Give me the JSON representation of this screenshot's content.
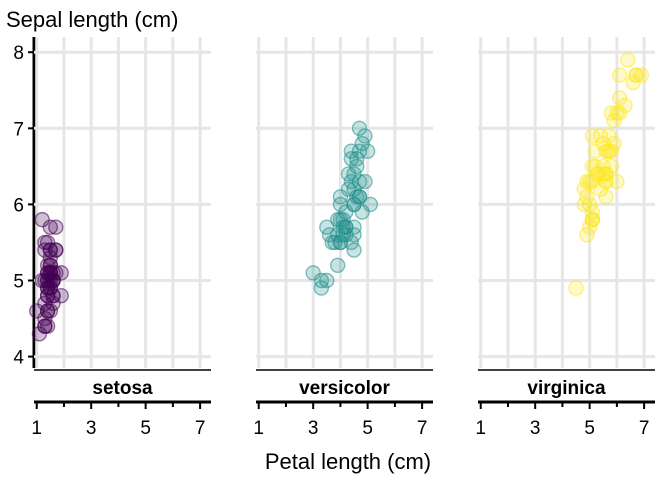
{
  "chart_data": {
    "type": "scatter",
    "ylabel": "Sepal length (cm)",
    "xlabel": "Petal length (cm)",
    "xlim": [
      0.9,
      7.4
    ],
    "ylim": [
      3.85,
      8.2
    ],
    "x_ticks": [
      1,
      3,
      5,
      7
    ],
    "x_minor_ticks": [
      2,
      4,
      6
    ],
    "y_ticks": [
      4,
      5,
      6,
      7,
      8
    ],
    "grid": true,
    "panels": [
      {
        "name": "setosa",
        "color": "#440154",
        "points": [
          [
            1.4,
            5.1
          ],
          [
            1.4,
            4.9
          ],
          [
            1.3,
            4.7
          ],
          [
            1.5,
            4.6
          ],
          [
            1.4,
            5.0
          ],
          [
            1.7,
            5.4
          ],
          [
            1.4,
            4.6
          ],
          [
            1.5,
            5.0
          ],
          [
            1.4,
            4.4
          ],
          [
            1.5,
            4.9
          ],
          [
            1.5,
            5.4
          ],
          [
            1.6,
            4.8
          ],
          [
            1.4,
            4.8
          ],
          [
            1.1,
            4.3
          ],
          [
            1.2,
            5.8
          ],
          [
            1.5,
            5.7
          ],
          [
            1.3,
            5.4
          ],
          [
            1.4,
            5.1
          ],
          [
            1.7,
            5.7
          ],
          [
            1.5,
            5.1
          ],
          [
            1.7,
            5.4
          ],
          [
            1.5,
            5.1
          ],
          [
            1.0,
            4.6
          ],
          [
            1.7,
            5.1
          ],
          [
            1.9,
            4.8
          ],
          [
            1.6,
            5.0
          ],
          [
            1.6,
            5.0
          ],
          [
            1.5,
            5.2
          ],
          [
            1.4,
            5.2
          ],
          [
            1.6,
            4.7
          ],
          [
            1.6,
            4.8
          ],
          [
            1.5,
            5.4
          ],
          [
            1.5,
            5.2
          ],
          [
            1.4,
            5.5
          ],
          [
            1.5,
            4.9
          ],
          [
            1.2,
            5.0
          ],
          [
            1.3,
            5.5
          ],
          [
            1.4,
            4.9
          ],
          [
            1.3,
            4.4
          ],
          [
            1.5,
            5.1
          ],
          [
            1.3,
            5.0
          ],
          [
            1.3,
            4.5
          ],
          [
            1.3,
            4.4
          ],
          [
            1.6,
            5.0
          ],
          [
            1.9,
            5.1
          ],
          [
            1.4,
            4.8
          ],
          [
            1.6,
            5.1
          ],
          [
            1.4,
            4.6
          ],
          [
            1.5,
            5.3
          ],
          [
            1.4,
            5.0
          ]
        ]
      },
      {
        "name": "versicolor",
        "color": "#21908c",
        "points": [
          [
            4.7,
            7.0
          ],
          [
            4.5,
            6.4
          ],
          [
            4.9,
            6.9
          ],
          [
            4.0,
            5.5
          ],
          [
            4.6,
            6.5
          ],
          [
            4.5,
            5.7
          ],
          [
            4.7,
            6.3
          ],
          [
            3.3,
            4.9
          ],
          [
            4.6,
            6.6
          ],
          [
            3.9,
            5.2
          ],
          [
            3.5,
            5.0
          ],
          [
            4.2,
            5.9
          ],
          [
            4.0,
            6.0
          ],
          [
            4.7,
            6.1
          ],
          [
            3.6,
            5.6
          ],
          [
            4.4,
            6.7
          ],
          [
            4.5,
            5.6
          ],
          [
            4.1,
            5.8
          ],
          [
            4.5,
            6.2
          ],
          [
            3.9,
            5.6
          ],
          [
            4.8,
            5.9
          ],
          [
            4.0,
            6.1
          ],
          [
            4.9,
            6.3
          ],
          [
            4.7,
            6.1
          ],
          [
            4.3,
            6.4
          ],
          [
            4.4,
            6.6
          ],
          [
            4.8,
            6.8
          ],
          [
            5.0,
            6.7
          ],
          [
            4.5,
            6.0
          ],
          [
            3.5,
            5.7
          ],
          [
            3.8,
            5.5
          ],
          [
            3.7,
            5.5
          ],
          [
            3.9,
            5.8
          ],
          [
            5.1,
            6.0
          ],
          [
            4.5,
            5.4
          ],
          [
            4.5,
            6.0
          ],
          [
            4.7,
            6.7
          ],
          [
            4.4,
            6.3
          ],
          [
            4.1,
            5.6
          ],
          [
            4.0,
            5.5
          ],
          [
            4.4,
            5.5
          ],
          [
            4.6,
            6.1
          ],
          [
            4.0,
            5.8
          ],
          [
            3.3,
            5.0
          ],
          [
            4.2,
            5.6
          ],
          [
            4.2,
            5.7
          ],
          [
            4.2,
            5.7
          ],
          [
            4.3,
            6.2
          ],
          [
            3.0,
            5.1
          ],
          [
            4.1,
            5.7
          ]
        ]
      },
      {
        "name": "virginica",
        "color": "#fde725",
        "points": [
          [
            6.0,
            6.3
          ],
          [
            5.1,
            5.8
          ],
          [
            5.9,
            7.1
          ],
          [
            5.6,
            6.3
          ],
          [
            5.8,
            6.5
          ],
          [
            6.6,
            7.6
          ],
          [
            4.5,
            4.9
          ],
          [
            6.3,
            7.3
          ],
          [
            5.8,
            6.7
          ],
          [
            6.1,
            7.2
          ],
          [
            5.1,
            6.5
          ],
          [
            5.3,
            6.4
          ],
          [
            5.5,
            6.8
          ],
          [
            5.0,
            5.7
          ],
          [
            5.1,
            5.8
          ],
          [
            5.3,
            6.4
          ],
          [
            5.5,
            6.5
          ],
          [
            6.7,
            7.7
          ],
          [
            6.9,
            7.7
          ],
          [
            5.0,
            6.0
          ],
          [
            5.7,
            6.9
          ],
          [
            4.9,
            5.6
          ],
          [
            6.7,
            7.7
          ],
          [
            4.9,
            6.3
          ],
          [
            5.7,
            6.7
          ],
          [
            6.0,
            7.2
          ],
          [
            4.8,
            6.2
          ],
          [
            4.9,
            6.1
          ],
          [
            5.6,
            6.4
          ],
          [
            5.8,
            7.2
          ],
          [
            6.1,
            7.4
          ],
          [
            6.4,
            7.9
          ],
          [
            5.6,
            6.4
          ],
          [
            5.1,
            6.3
          ],
          [
            5.6,
            6.1
          ],
          [
            6.1,
            7.7
          ],
          [
            5.6,
            6.3
          ],
          [
            5.5,
            6.4
          ],
          [
            4.8,
            6.0
          ],
          [
            5.4,
            6.9
          ],
          [
            5.6,
            6.7
          ],
          [
            5.1,
            6.9
          ],
          [
            5.1,
            5.8
          ],
          [
            5.9,
            6.8
          ],
          [
            5.7,
            6.7
          ],
          [
            5.2,
            6.7
          ],
          [
            5.0,
            6.3
          ],
          [
            5.2,
            6.5
          ],
          [
            5.4,
            6.2
          ],
          [
            5.1,
            5.9
          ]
        ]
      }
    ]
  }
}
